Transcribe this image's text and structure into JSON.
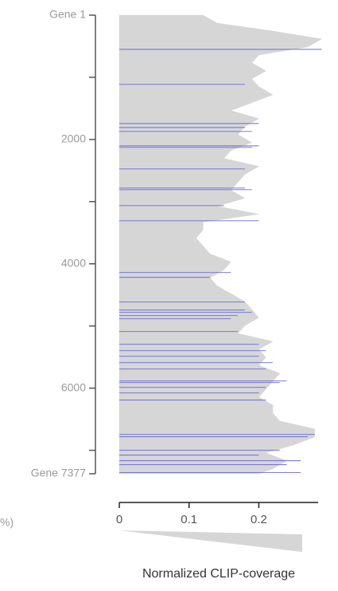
{
  "chart_data": {
    "type": "area",
    "orientation": "horizontal",
    "yreverse": true,
    "xlabel": "Normalized CLIP-coverage",
    "side_note": "%)",
    "xlim": [
      0,
      0.285
    ],
    "xticks": [
      0,
      0.1,
      0.2
    ],
    "ylim": [
      1,
      7377
    ],
    "yticks": [
      {
        "value": 1,
        "label": "Gene 1"
      },
      2000,
      4000,
      6000,
      {
        "value": 7377,
        "label": "Gene 7377"
      }
    ],
    "yminor_ticks": [
      1000,
      3000,
      5000,
      7000
    ],
    "series": [
      {
        "color": "#d6d6d6",
        "kind": "area",
        "x": [
          1,
          129,
          257,
          385,
          513,
          641,
          769,
          897,
          1025,
          1153,
          1281,
          1409,
          1537,
          1665,
          1793,
          1921,
          2049,
          2177,
          2305,
          2433,
          2561,
          2689,
          2817,
          2945,
          3073,
          3201,
          3329,
          3457,
          3585,
          3713,
          3841,
          3969,
          4097,
          4225,
          4353,
          4481,
          4609,
          4737,
          4865,
          4993,
          5121,
          5249,
          5377,
          5505,
          5633,
          5761,
          5889,
          6017,
          6145,
          6273,
          6401,
          6529,
          6657,
          6785,
          6913,
          7041,
          7169,
          7297,
          7377
        ],
        "values": [
          0.12,
          0.14,
          0.22,
          0.29,
          0.27,
          0.2,
          0.19,
          0.21,
          0.19,
          0.2,
          0.22,
          0.19,
          0.16,
          0.2,
          0.18,
          0.17,
          0.19,
          0.16,
          0.15,
          0.2,
          0.18,
          0.17,
          0.16,
          0.18,
          0.14,
          0.2,
          0.12,
          0.12,
          0.11,
          0.12,
          0.13,
          0.16,
          0.15,
          0.13,
          0.14,
          0.16,
          0.18,
          0.19,
          0.2,
          0.18,
          0.17,
          0.22,
          0.2,
          0.21,
          0.2,
          0.23,
          0.22,
          0.21,
          0.2,
          0.22,
          0.22,
          0.23,
          0.28,
          0.28,
          0.25,
          0.21,
          0.24,
          0.22,
          0.2
        ]
      },
      {
        "color": "#6a6ad8",
        "kind": "lines",
        "x": [
          551,
          1115,
          1744,
          1808,
          1872,
          2103,
          2128,
          2474,
          2782,
          2808,
          3064,
          3308,
          4141,
          4218,
          4615,
          4744,
          4782,
          4833,
          4885,
          5090,
          5295,
          5397,
          5487,
          5590,
          5692,
          5885,
          5910,
          5987,
          6077,
          6192,
          6744,
          6782,
          7000,
          7077,
          7167,
          7231,
          7359
        ],
        "values": [
          0.29,
          0.18,
          0.2,
          0.18,
          0.19,
          0.2,
          0.19,
          0.18,
          0.18,
          0.19,
          0.15,
          0.2,
          0.16,
          0.13,
          0.18,
          0.18,
          0.19,
          0.17,
          0.16,
          0.17,
          0.2,
          0.21,
          0.2,
          0.22,
          0.21,
          0.24,
          0.23,
          0.21,
          0.2,
          0.21,
          0.28,
          0.27,
          0.23,
          0.2,
          0.26,
          0.24,
          0.26
        ]
      }
    ]
  }
}
